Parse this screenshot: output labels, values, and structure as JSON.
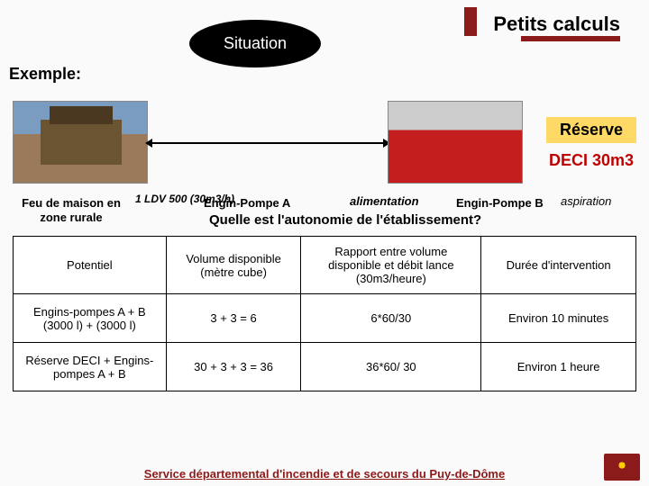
{
  "header": {
    "title": "Petits calculs"
  },
  "situation": "Situation",
  "exemple": "Exemple:",
  "boxes": {
    "reserve": "Réserve",
    "deci": "DECI 30m3"
  },
  "labels": {
    "feu": "Feu de maison en zone rurale",
    "ldv": "1 LDV 500 (30m3/h)",
    "epA": "Engin-Pompe A",
    "alim": "alimentation",
    "epB": "Engin-Pompe B",
    "aspi": "aspiration",
    "question": "Quelle est l'autonomie de l'établissement?"
  },
  "table": {
    "headers": {
      "c1": "Potentiel",
      "c2": "Volume disponible (mètre cube)",
      "c3": "Rapport entre volume disponible et débit lance (30m3/heure)",
      "c4": "Durée d'intervention"
    },
    "rows": [
      {
        "c1": "Engins-pompes A + B (3000 l)  +  (3000 l)",
        "c2": "3 + 3 = 6",
        "c3": "6*60/30",
        "c4": "Environ 10 minutes"
      },
      {
        "c1": "Réserve DECI + Engins-pompes A + B",
        "c2": "30 + 3 + 3 = 36",
        "c3": "36*60/ 30",
        "c4": "Environ 1 heure"
      }
    ]
  },
  "footer": "Service départemental d'incendie et de secours du Puy-de-Dôme"
}
